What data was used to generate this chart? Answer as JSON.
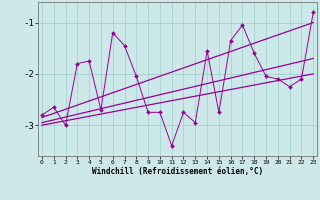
{
  "xlabel": "Windchill (Refroidissement éolien,°C)",
  "x": [
    0,
    1,
    2,
    3,
    4,
    5,
    6,
    7,
    8,
    9,
    10,
    11,
    12,
    13,
    14,
    15,
    16,
    17,
    18,
    19,
    20,
    21,
    22,
    23
  ],
  "line1": [
    -2.8,
    -2.65,
    -3.0,
    -1.8,
    -1.75,
    -2.7,
    -1.2,
    -1.45,
    -2.05,
    -2.75,
    -2.75,
    -3.4,
    -2.75,
    -2.95,
    -1.55,
    -2.75,
    -1.35,
    -1.05,
    -1.6,
    -2.05,
    -2.1,
    -2.25,
    -2.1,
    -0.8
  ],
  "trend1_x": [
    0,
    23
  ],
  "trend1_y": [
    -2.85,
    -1.0
  ],
  "trend2_x": [
    0,
    23
  ],
  "trend2_y": [
    -2.95,
    -1.7
  ],
  "trend3_x": [
    0,
    23
  ],
  "trend3_y": [
    -3.0,
    -2.0
  ],
  "line_color": "#990099",
  "bg_color": "#cce8e8",
  "grid_color": "#aad4d4",
  "ylim": [
    -3.6,
    -0.6
  ],
  "yticks": [
    -3,
    -2,
    -1
  ],
  "xlim": [
    -0.3,
    23.3
  ]
}
